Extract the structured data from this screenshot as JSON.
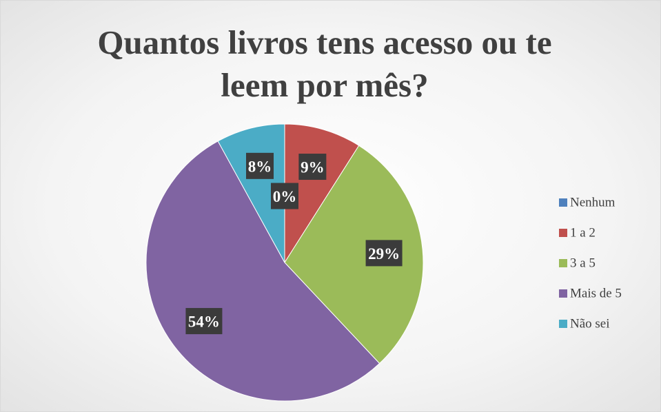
{
  "chart_data": {
    "type": "pie",
    "title": "Quantos livros tens acesso ou te leem por mês?",
    "categories": [
      "Nenhum",
      "1 a 2",
      "3 a 5",
      "Mais de 5",
      "Não sei"
    ],
    "values": [
      0,
      9,
      29,
      54,
      8
    ],
    "value_labels": [
      "0%",
      "9%",
      "29%",
      "54%",
      "8%"
    ],
    "colors": [
      "#4f81bd",
      "#c0504d",
      "#9bbb59",
      "#8064a2",
      "#4bacc6"
    ],
    "legend": "right"
  }
}
